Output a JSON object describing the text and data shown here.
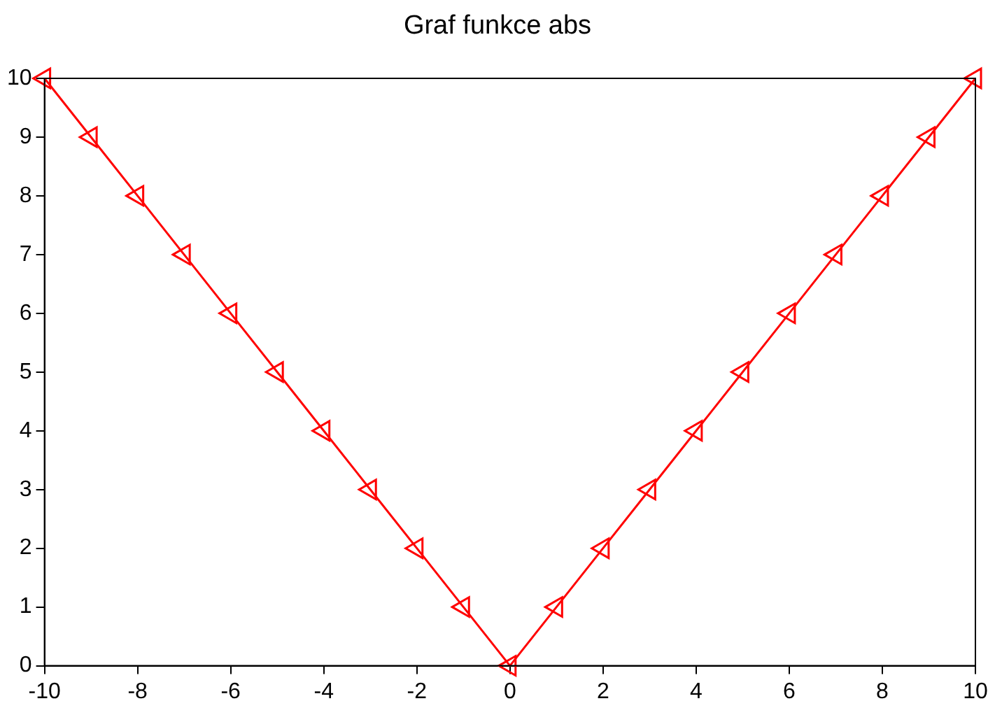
{
  "chart_data": {
    "type": "line",
    "title": "Graf funkce abs",
    "x": [
      -10,
      -9,
      -8,
      -7,
      -6,
      -5,
      -4,
      -3,
      -2,
      -1,
      0,
      1,
      2,
      3,
      4,
      5,
      6,
      7,
      8,
      9,
      10
    ],
    "series": [
      {
        "color": "#ff0000",
        "values": [
          10,
          9,
          8,
          7,
          6,
          5,
          4,
          3,
          2,
          1,
          0,
          1,
          2,
          3,
          4,
          5,
          6,
          7,
          8,
          9,
          10
        ]
      }
    ],
    "xlim": [
      -10,
      10
    ],
    "xticks": [
      -10,
      -8,
      -6,
      -4,
      -2,
      0,
      2,
      4,
      6,
      8,
      10
    ],
    "ylim": [
      0,
      10
    ],
    "yticks": [
      0,
      1,
      2,
      3,
      4,
      5,
      6,
      7,
      8,
      9,
      10
    ],
    "grid": false,
    "legend": false,
    "marker": "triangle",
    "line_style": "solid"
  }
}
